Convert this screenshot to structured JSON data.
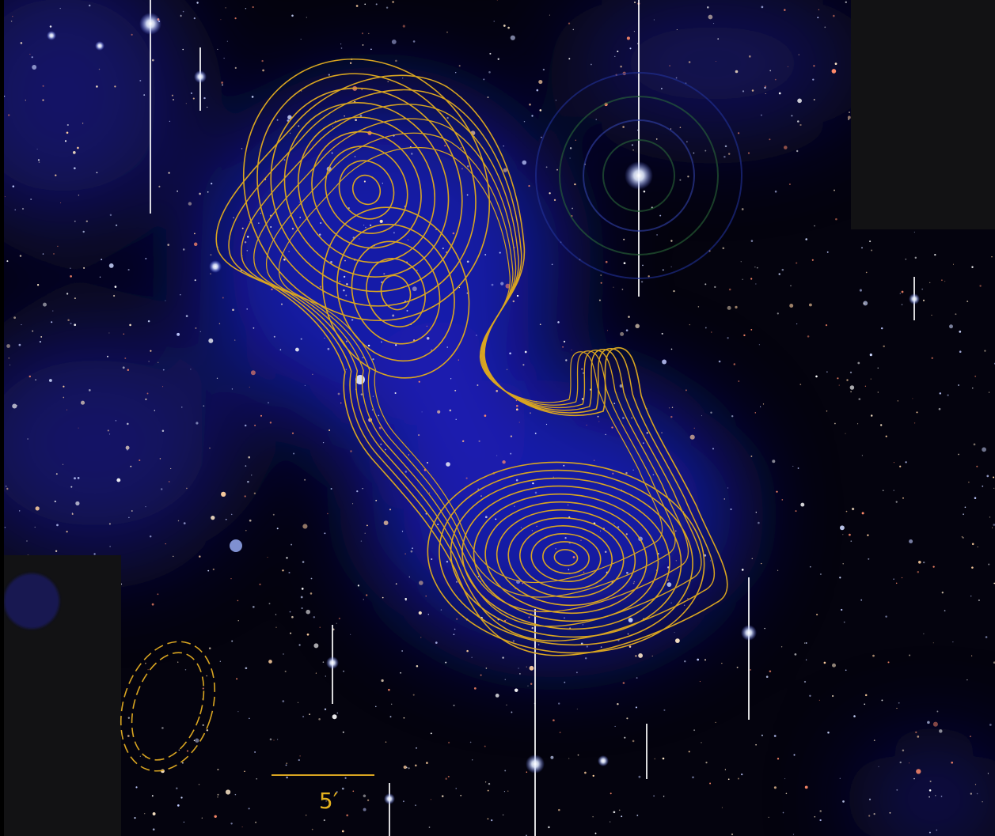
{
  "scale_bar": {
    "label": "5′"
  }
}
